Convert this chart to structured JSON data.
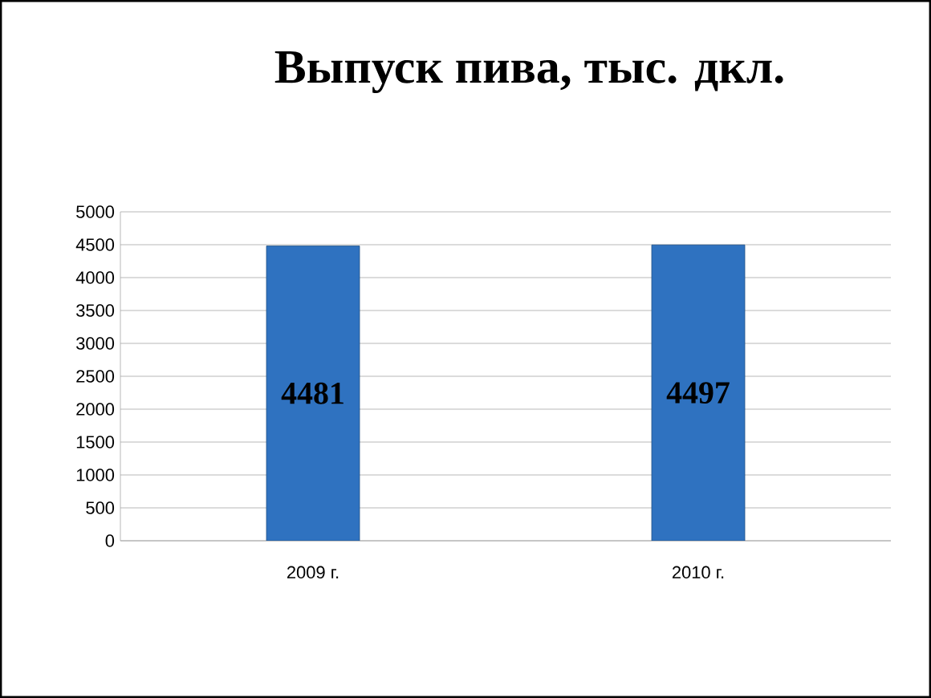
{
  "chart_data": {
    "type": "bar",
    "title": "Выпуск пива, тыс. дкл.",
    "categories": [
      "2009 г.",
      "2010 г."
    ],
    "values": [
      4481,
      4497
    ],
    "color": "#2f72c0",
    "ylim": [
      0,
      5000
    ],
    "yticks": [
      0,
      500,
      1000,
      1500,
      2000,
      2500,
      3000,
      3500,
      4000,
      4500,
      5000
    ],
    "grid": "y",
    "data_labels": true
  }
}
